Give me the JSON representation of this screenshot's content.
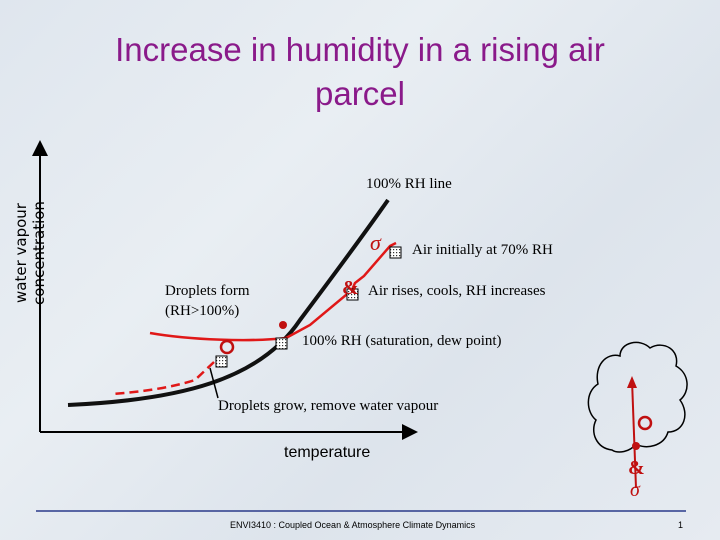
{
  "slide": {
    "title_line1": "Increase in humidity in a rising air",
    "title_line2": "parcel",
    "y_axis_label": "water vapour concentration",
    "x_axis_label": "temperature",
    "labels": {
      "rh_line": "100% RH line",
      "initial": "Air initially at 70% RH",
      "rises": "Air rises, cools, RH increases",
      "saturation": "100% RH (saturation, dew point)",
      "droplets_form_1": "Droplets form",
      "droplets_form_2": "(RH>100%)",
      "droplets_grow": "Droplets grow, remove water vapour"
    },
    "footer_text": "ENVI3410 : Coupled Ocean & Atmosphere Climate Dynamics",
    "page_number": "1"
  },
  "colors": {
    "title": "#8a1a8a",
    "curve": "#000000",
    "path": "#e01818",
    "footer_rule": "#2a3a8a"
  }
}
